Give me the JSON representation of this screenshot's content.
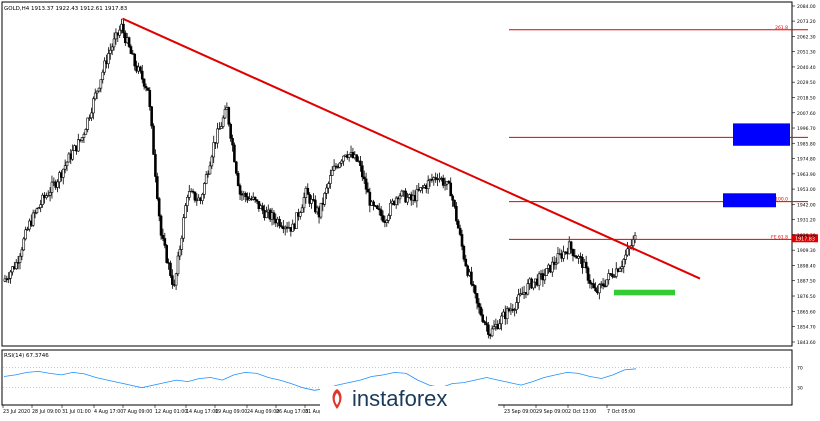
{
  "header": {
    "symbol_text": "GOLD,H4  1913.37 1922.43 1912.61 1917.83"
  },
  "rsi_panel": {
    "label": "RSI(14) 67.3746",
    "levels": [
      "70",
      "30"
    ],
    "level_values": [
      70,
      30
    ]
  },
  "price_axis": {
    "ticks": [
      "2084.00",
      "2073.20",
      "2062.30",
      "2051.30",
      "2040.40",
      "2029.50",
      "2018.50",
      "2007.60",
      "1996.70",
      "1985.80",
      "1974.80",
      "1963.90",
      "1953.00",
      "1942.00",
      "1931.20",
      "1920.30",
      "1909.30",
      "1898.40",
      "1887.50",
      "1876.50",
      "1865.60",
      "1854.70",
      "1843.60"
    ],
    "current_price_label": "1917.83",
    "fib_label_1": "FE 61.8",
    "fib_label_2": "FE 100.0",
    "fib_label_3": "FE 161.8",
    "fib_label_4": "261.8"
  },
  "time_axis": {
    "labels": [
      "23 Jul 2020",
      "28 Jul 09:00",
      "31 Jul 01:00",
      "4 Aug 17:00",
      "7 Aug 09:00",
      "12 Aug 01:00",
      "14 Aug 17:00",
      "19 Aug 09:00",
      "24 Aug 09:00",
      "26 Aug 17:00",
      "31 Aug 09:00",
      "...",
      "23 Sep 09:00",
      "29 Sep 09:00",
      "2 Oct 13:00",
      "7 Oct 05:00"
    ]
  },
  "watermark": {
    "text": "instaforex"
  },
  "colors": {
    "trendline": "#e00000",
    "fib_lines": "#e00000",
    "target_boxes": "#0000ff",
    "support_box": "#33cc33",
    "candles": "#000000",
    "rsi_line": "#1e90ff",
    "current_price_tag": "#e00000"
  },
  "chart_data": {
    "type": "candlestick",
    "title": "GOLD,H4",
    "ylim": [
      1843.6,
      2084.0
    ],
    "price_path": [
      [
        "23 Jul 2020",
        1887
      ],
      [
        "24 Jul",
        1900
      ],
      [
        "27 Jul",
        1928
      ],
      [
        "28 Jul",
        1945
      ],
      [
        "29 Jul",
        1958
      ],
      [
        "31 Jul",
        1975
      ],
      [
        "3 Aug",
        1990
      ],
      [
        "4 Aug",
        2020
      ],
      [
        "5 Aug",
        2050
      ],
      [
        "6 Aug",
        2069
      ],
      [
        "7 Aug",
        2042
      ],
      [
        "10 Aug",
        2025
      ],
      [
        "11 Aug",
        1920
      ],
      [
        "12 Aug",
        1882
      ],
      [
        "13 Aug",
        1950
      ],
      [
        "14 Aug",
        1945
      ],
      [
        "17 Aug",
        1985
      ],
      [
        "18 Aug",
        2010
      ],
      [
        "19 Aug",
        1950
      ],
      [
        "20 Aug",
        1945
      ],
      [
        "21 Aug",
        1935
      ],
      [
        "24 Aug",
        1930
      ],
      [
        "25 Aug",
        1925
      ],
      [
        "26 Aug",
        1950
      ],
      [
        "27 Aug",
        1935
      ],
      [
        "28 Aug",
        1965
      ],
      [
        "31 Aug",
        1980
      ],
      [
        "1 Sep",
        1972
      ],
      [
        "3 Sep",
        1940
      ],
      [
        "7 Sep",
        1932
      ],
      [
        "9 Sep",
        1950
      ],
      [
        "11 Sep",
        1945
      ],
      [
        "14 Sep",
        1955
      ],
      [
        "16 Sep",
        1963
      ],
      [
        "18 Sep",
        1952
      ],
      [
        "21 Sep",
        1905
      ],
      [
        "23 Sep",
        1870
      ],
      [
        "24 Sep",
        1850
      ],
      [
        "25 Sep",
        1862
      ],
      [
        "28 Sep",
        1872
      ],
      [
        "29 Sep",
        1885
      ],
      [
        "30 Sep",
        1890
      ],
      [
        "1 Oct",
        1902
      ],
      [
        "2 Oct",
        1912
      ],
      [
        "5 Oct",
        1900
      ],
      [
        "6 Oct",
        1878
      ],
      [
        "7 Oct",
        1890
      ],
      [
        "8 Oct",
        1900
      ],
      [
        "9 Oct",
        1917.83
      ]
    ],
    "trendline": {
      "from": [
        "6 Aug",
        2075
      ],
      "to": [
        "12 Oct",
        1889
      ]
    },
    "fib_levels": [
      {
        "label": "261.8",
        "value": 2067
      },
      {
        "label": "FE 161.8",
        "value": 1990
      },
      {
        "label": "FE 100.0",
        "value": 1944
      },
      {
        "label": "FE 61.8",
        "value": 1917
      }
    ],
    "target_boxes": [
      {
        "low": 1984,
        "high": 2000
      },
      {
        "low": 1940,
        "high": 1950
      }
    ],
    "support_box": {
      "low": 1877,
      "high": 1881
    },
    "rsi": {
      "value": 67.3746,
      "path": [
        52,
        55,
        60,
        62,
        58,
        55,
        60,
        57,
        50,
        45,
        40,
        35,
        30,
        35,
        40,
        45,
        42,
        48,
        50,
        45,
        55,
        60,
        58,
        50,
        45,
        38,
        30,
        25,
        28,
        35,
        40,
        45,
        52,
        55,
        60,
        58,
        45,
        35,
        30,
        38,
        40,
        45,
        50,
        45,
        40,
        35,
        42,
        50,
        55,
        60,
        58,
        52,
        48,
        55,
        65,
        67
      ]
    }
  }
}
